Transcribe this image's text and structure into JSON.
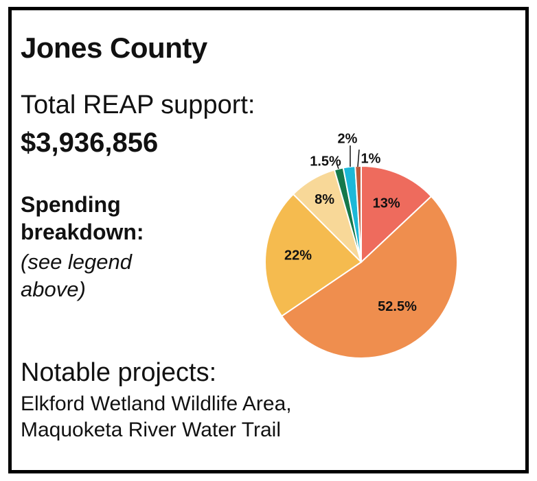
{
  "header": {
    "title": "Jones County"
  },
  "support": {
    "label": "Total REAP support:",
    "value": "$3,936,856"
  },
  "spending": {
    "title": "Spending breakdown:",
    "note": "(see legend above)"
  },
  "notable": {
    "title": "Notable projects:",
    "items": [
      "Elkford Wetland Wildlife Area,",
      "Maquoketa River Water Trail"
    ]
  },
  "chart_data": {
    "type": "pie",
    "title": "",
    "slices": [
      {
        "value": 13,
        "label": "13%",
        "color": "#EE6B5D"
      },
      {
        "value": 52.5,
        "label": "52.5%",
        "color": "#EF8E4E"
      },
      {
        "value": 22,
        "label": "22%",
        "color": "#F5BB4F"
      },
      {
        "value": 8,
        "label": "8%",
        "color": "#F8D898"
      },
      {
        "value": 1.5,
        "label": "1.5%",
        "color": "#15784A"
      },
      {
        "value": 2,
        "label": "2%",
        "color": "#1CB8D8"
      },
      {
        "value": 1,
        "label": "1%",
        "color": "#BD5A3B"
      }
    ]
  }
}
